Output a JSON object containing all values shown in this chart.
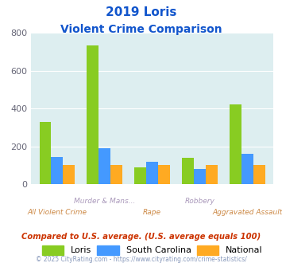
{
  "title_line1": "2019 Loris",
  "title_line2": "Violent Crime Comparison",
  "categories": [
    "All Violent Crime",
    "Murder & Mans...",
    "Rape",
    "Robbery",
    "Aggravated Assault"
  ],
  "top_labels": [
    "",
    "Murder & Mans...",
    "",
    "Robbery",
    ""
  ],
  "bottom_labels": [
    "All Violent Crime",
    "",
    "Rape",
    "",
    "Aggravated Assault"
  ],
  "loris": [
    330,
    733,
    90,
    138,
    422
  ],
  "sc": [
    143,
    190,
    120,
    78,
    160
  ],
  "national": [
    100,
    100,
    100,
    100,
    100
  ],
  "loris_color": "#88cc22",
  "sc_color": "#4499ff",
  "national_color": "#ffaa22",
  "bg_color": "#ddeef0",
  "ylim": [
    0,
    800
  ],
  "yticks": [
    0,
    200,
    400,
    600,
    800
  ],
  "title_color": "#1155cc",
  "xlabel_top_color": "#aa99bb",
  "xlabel_bottom_color": "#cc8844",
  "legend_labels": [
    "Loris",
    "South Carolina",
    "National"
  ],
  "note": "Compared to U.S. average. (U.S. average equals 100)",
  "footer": "© 2025 CityRating.com - https://www.cityrating.com/crime-statistics/",
  "note_color": "#cc3300",
  "footer_color": "#8899bb",
  "bar_width": 0.25
}
